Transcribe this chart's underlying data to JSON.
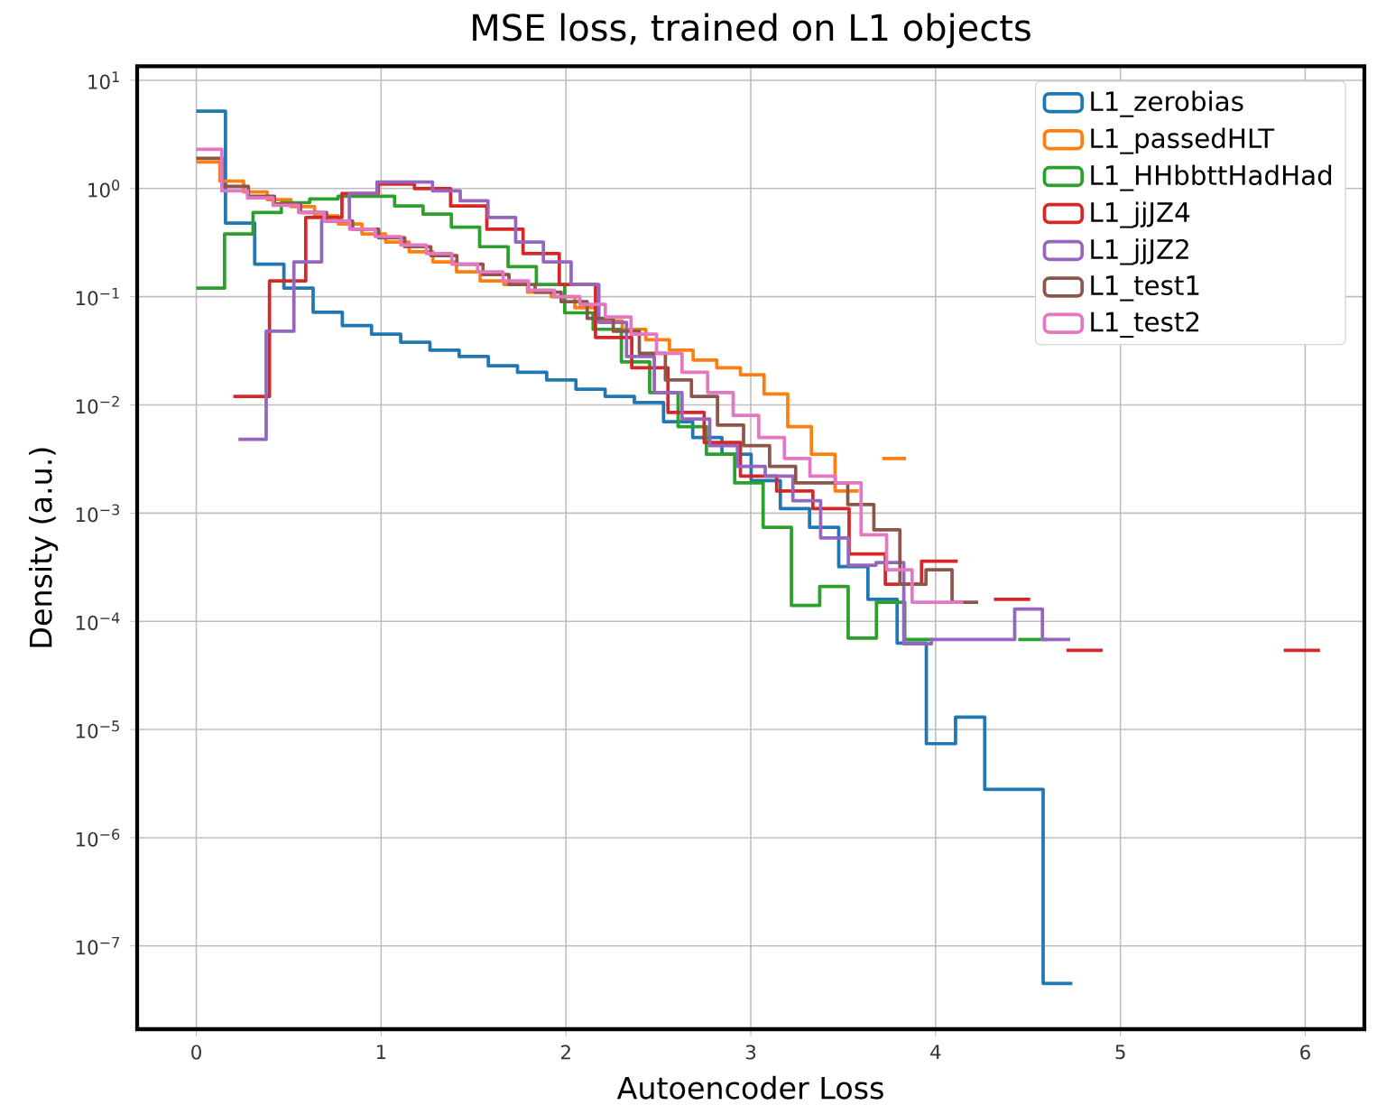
{
  "chart_data": {
    "type": "step",
    "title": "MSE loss, trained on L1 objects",
    "xlabel": "Autoencoder Loss",
    "ylabel": "Density (a.u.)",
    "xlim": [
      -0.32,
      6.32
    ],
    "ylim": [
      1.7e-08,
      13.5
    ],
    "log": "y",
    "grid": true,
    "legend": "top right",
    "xticks": [
      0,
      1,
      2,
      3,
      4,
      5,
      6
    ],
    "yticks": [
      {
        "value": 10,
        "label": "10$^{1}$"
      },
      {
        "value": 1,
        "label": "10$^{0}$"
      },
      {
        "value": 0.1,
        "label": "10$^{−1}$"
      },
      {
        "value": 0.01,
        "label": "10$^{−2}$"
      },
      {
        "value": 0.001,
        "label": "10$^{−3}$"
      },
      {
        "value": 0.0001,
        "label": "10$^{−4}$"
      },
      {
        "value": 1e-05,
        "label": "10$^{−5}$"
      },
      {
        "value": 1e-06,
        "label": "10$^{−6}$"
      },
      {
        "value": 1e-07,
        "label": "10$^{−7}$"
      }
    ],
    "series": [
      {
        "name": "L1_zerobias",
        "color": "#1f77b4",
        "x": [
          0,
          0.158,
          0.316,
          0.474,
          0.632,
          0.79,
          0.948,
          1.106,
          1.264,
          1.422,
          1.58,
          1.738,
          1.896,
          2.054,
          2.212,
          2.37,
          2.528,
          2.686,
          2.844,
          3.002,
          3.16,
          3.318,
          3.476,
          3.634,
          3.792,
          3.95,
          4.108,
          4.266,
          4.424,
          4.582,
          4.74
        ],
        "values": [
          5.2,
          0.48,
          0.2,
          0.12,
          0.072,
          0.054,
          0.045,
          0.038,
          0.032,
          0.028,
          0.023,
          0.02,
          0.017,
          0.014,
          0.012,
          0.0105,
          0.007,
          0.005,
          0.0035,
          0.002,
          0.0011,
          0.00074,
          0.00032,
          0.00016,
          6.3e-05,
          7.4e-06,
          1.3e-05,
          2.8e-06,
          2.8e-06,
          4.5e-08,
          4.5e-08
        ]
      },
      {
        "name": "L1_passedHLT",
        "color": "#ff7f0e",
        "x": [
          0,
          0.128,
          0.256,
          0.384,
          0.512,
          0.64,
          0.768,
          0.896,
          1.024,
          1.152,
          1.28,
          1.408,
          1.536,
          1.664,
          1.792,
          1.92,
          2.048,
          2.176,
          2.304,
          2.432,
          2.56,
          2.688,
          2.816,
          2.944,
          3.072,
          3.2,
          3.328,
          3.456,
          3.584,
          3.712,
          3.84
        ],
        "values": [
          1.76,
          1.17,
          0.93,
          0.79,
          0.68,
          0.56,
          0.47,
          0.38,
          0.32,
          0.26,
          0.21,
          0.17,
          0.14,
          0.13,
          0.11,
          0.1,
          0.079,
          0.06,
          0.05,
          0.04,
          0.032,
          0.026,
          0.022,
          0.019,
          0.0126,
          0.0063,
          0.0035,
          0.0016,
          null,
          0.0032,
          0.0032
        ]
      },
      {
        "name": "L1_HHbbttHadHad",
        "color": "#2ca02c",
        "x": [
          0,
          0.153,
          0.307,
          0.46,
          0.613,
          0.767,
          0.92,
          1.073,
          1.227,
          1.38,
          1.533,
          1.687,
          1.84,
          1.993,
          2.147,
          2.3,
          2.453,
          2.607,
          2.76,
          2.913,
          3.067,
          3.22,
          3.373,
          3.527,
          3.68,
          3.833,
          3.987,
          4.14,
          4.293,
          4.447,
          4.6
        ],
        "values": [
          0.12,
          0.38,
          0.6,
          0.74,
          0.8,
          0.85,
          0.85,
          0.69,
          0.58,
          0.44,
          0.29,
          0.19,
          0.13,
          0.071,
          0.05,
          0.025,
          0.013,
          0.0063,
          0.0035,
          0.0019,
          0.00074,
          0.00014,
          0.00021,
          7e-05,
          0.00015,
          6.8e-05,
          null,
          null,
          null,
          6.8e-05,
          6.8e-05
        ]
      },
      {
        "name": "L1_jjJZ4",
        "color": "#d62728",
        "x": [
          0.2,
          0.396,
          0.592,
          0.788,
          0.984,
          1.18,
          1.376,
          1.572,
          1.768,
          1.964,
          2.16,
          2.356,
          2.552,
          2.748,
          2.944,
          3.14,
          3.336,
          3.532,
          3.728,
          3.924,
          4.12,
          4.316,
          4.512,
          4.708,
          4.904,
          5.1,
          5.296,
          5.492,
          5.688,
          5.884,
          6.08
        ],
        "values": [
          0.012,
          0.14,
          0.54,
          0.9,
          1.1,
          1.0,
          0.69,
          0.42,
          0.25,
          0.13,
          0.042,
          0.022,
          0.0085,
          0.0045,
          0.0022,
          0.0016,
          0.0011,
          0.00042,
          0.00022,
          0.00036,
          null,
          0.00016,
          null,
          5.4e-05,
          null,
          null,
          null,
          null,
          null,
          5.4e-05,
          5.4e-05
        ]
      },
      {
        "name": "L1_jjJZ2",
        "color": "#9467bd",
        "x": [
          0.228,
          0.378,
          0.528,
          0.678,
          0.828,
          0.978,
          1.128,
          1.278,
          1.428,
          1.578,
          1.728,
          1.878,
          2.028,
          2.178,
          2.328,
          2.478,
          2.628,
          2.778,
          2.928,
          3.078,
          3.228,
          3.378,
          3.528,
          3.678,
          3.828,
          3.978,
          4.128,
          4.278,
          4.428,
          4.578,
          4.728
        ],
        "values": [
          0.0048,
          0.048,
          0.21,
          0.5,
          0.9,
          1.15,
          1.15,
          0.95,
          0.77,
          0.54,
          0.32,
          0.21,
          0.13,
          0.058,
          0.028,
          0.013,
          0.0074,
          0.0042,
          0.0027,
          0.0022,
          0.0013,
          0.00059,
          0.00033,
          0.00035,
          6.2e-05,
          6.8e-05,
          6.8e-05,
          6.8e-05,
          0.00013,
          6.8e-05,
          6.8e-05
        ]
      },
      {
        "name": "L1_test1",
        "color": "#8c564b",
        "x": [
          0,
          0.141,
          0.282,
          0.423,
          0.564,
          0.705,
          0.846,
          0.987,
          1.128,
          1.269,
          1.41,
          1.551,
          1.692,
          1.833,
          1.974,
          2.115,
          2.256,
          2.397,
          2.538,
          2.679,
          2.82,
          2.961,
          3.102,
          3.243,
          3.384,
          3.525,
          3.666,
          3.807,
          3.948,
          4.089,
          4.23
        ],
        "values": [
          1.9,
          1.05,
          0.85,
          0.72,
          0.6,
          0.5,
          0.42,
          0.35,
          0.29,
          0.24,
          0.2,
          0.16,
          0.13,
          0.11,
          0.09,
          0.063,
          0.048,
          0.03,
          0.017,
          0.012,
          0.0065,
          0.0042,
          0.0027,
          0.0019,
          0.0019,
          0.0012,
          0.0007,
          0.00022,
          0.0003,
          0.00015,
          0.00015
        ]
      },
      {
        "name": "L1_test2",
        "color": "#e377c2",
        "x": [
          0,
          0.138,
          0.277,
          0.415,
          0.553,
          0.692,
          0.83,
          0.968,
          1.107,
          1.245,
          1.383,
          1.522,
          1.66,
          1.798,
          1.937,
          2.075,
          2.213,
          2.352,
          2.49,
          2.628,
          2.767,
          2.905,
          3.043,
          3.182,
          3.32,
          3.458,
          3.597,
          3.735,
          3.873,
          4.012,
          4.15
        ],
        "values": [
          2.3,
          0.95,
          0.82,
          0.7,
          0.6,
          0.5,
          0.42,
          0.36,
          0.3,
          0.25,
          0.2,
          0.17,
          0.14,
          0.115,
          0.1,
          0.085,
          0.065,
          0.045,
          0.03,
          0.02,
          0.013,
          0.008,
          0.005,
          0.0032,
          0.0022,
          0.0019,
          0.00063,
          0.0003,
          0.00015,
          0.00015,
          0.00015
        ]
      }
    ]
  }
}
